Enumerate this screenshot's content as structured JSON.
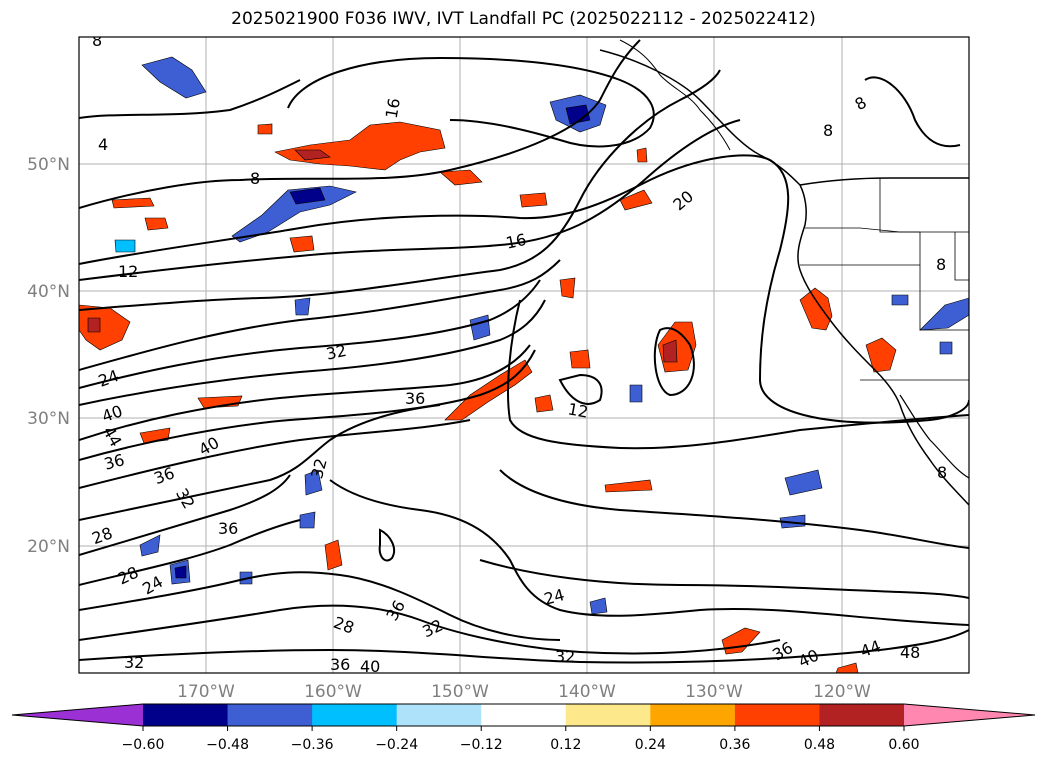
{
  "title": "2025021900 F036 IWV, IVT Landfall PC (2025022112 - 2025022412)",
  "map": {
    "projection": "equirectangular",
    "lon_range": [
      "180°W",
      "110°W"
    ],
    "lat_range": [
      "10°N",
      "60°N"
    ],
    "gridlines": true,
    "lat_labels": [
      "50°N",
      "40°N",
      "30°N",
      "20°N"
    ],
    "lon_labels": [
      "170°W",
      "160°W",
      "150°W",
      "140°W",
      "130°W",
      "120°W"
    ],
    "contour_labels": [
      "8",
      "16",
      "4",
      "8",
      "20",
      "16",
      "12",
      "32",
      "24",
      "40",
      "44",
      "36",
      "36",
      "12",
      "40",
      "36",
      "32",
      "32",
      "36",
      "28",
      "28",
      "24",
      "36",
      "32",
      "28",
      "24",
      "36",
      "40",
      "32",
      "32",
      "36",
      "40",
      "44",
      "48",
      "8",
      "8",
      "8",
      "8"
    ],
    "colors": {
      "coast": "#000000",
      "grid": "#b0b0b0",
      "contour": "#000000"
    }
  },
  "colorbar": {
    "ticks": [
      "−0.60",
      "−0.48",
      "−0.36",
      "−0.24",
      "−0.12",
      "0.12",
      "0.24",
      "0.36",
      "0.48",
      "0.60"
    ],
    "colors": [
      "#9b30d4",
      "#00008b",
      "#3d5fd3",
      "#00bfff",
      "#aee2fa",
      "#ffffff",
      "#fde98c",
      "#ffa500",
      "#ff4000",
      "#b22222",
      "#ff87b0"
    ],
    "extend": "both"
  }
}
